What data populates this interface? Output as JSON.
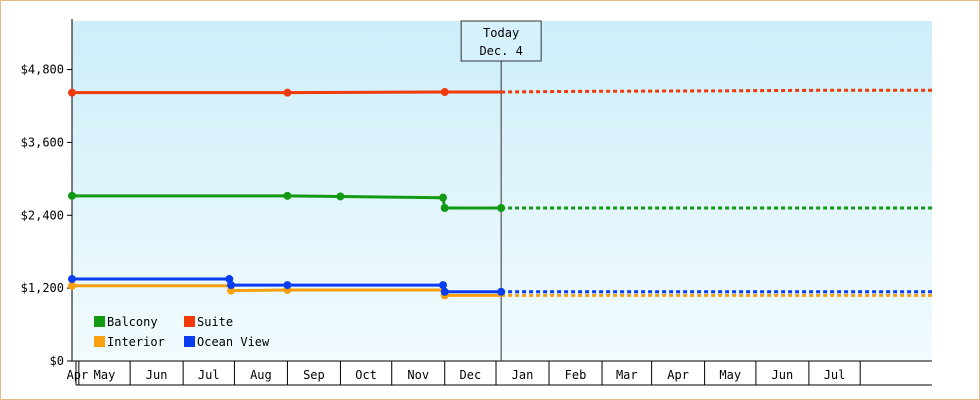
{
  "chart_data": {
    "type": "line",
    "y_ticks": [
      "$0",
      "$1,200",
      "$2,400",
      "$3,600",
      "$4,800"
    ],
    "y_tick_values": [
      0,
      1200,
      2400,
      3600,
      4800
    ],
    "ylim": [
      0,
      5600
    ],
    "x_ticks": [
      "Apr",
      "May",
      "Jun",
      "Jul",
      "Aug",
      "Sep",
      "Oct",
      "Nov",
      "Dec",
      "Jan",
      "Feb",
      "Mar",
      "Apr",
      "May",
      "Jun",
      "Jul"
    ],
    "xlim": [
      "2023-03-28",
      "2024-08-12"
    ],
    "today": {
      "label_line1": "Today",
      "label_line2": "Dec. 4",
      "date": "2023-12-04"
    },
    "grid": false,
    "legend_position": "bottom-left",
    "background_gradient": [
      "#cdeef9",
      "#f2fbfe"
    ],
    "series": [
      {
        "name": "Balcony",
        "color": "#129a12",
        "actual": [
          {
            "x": "2023-03-28",
            "y": 2720
          },
          {
            "x": "2023-08-01",
            "y": 2720
          },
          {
            "x": "2023-09-01",
            "y": 2710
          },
          {
            "x": "2023-10-31",
            "y": 2690
          },
          {
            "x": "2023-11-01",
            "y": 2520
          },
          {
            "x": "2023-12-04",
            "y": 2520
          }
        ],
        "markers": [
          "2023-03-28",
          "2023-08-01",
          "2023-09-01",
          "2023-10-31",
          "2023-11-01",
          "2023-12-04"
        ],
        "forecast": [
          {
            "x": "2023-12-04",
            "y": 2520
          },
          {
            "x": "2024-08-12",
            "y": 2520
          }
        ]
      },
      {
        "name": "Suite",
        "color": "#f03a0a",
        "actual": [
          {
            "x": "2023-03-28",
            "y": 4420
          },
          {
            "x": "2023-08-01",
            "y": 4420
          },
          {
            "x": "2023-11-01",
            "y": 4430
          },
          {
            "x": "2023-12-04",
            "y": 4430
          }
        ],
        "markers": [
          "2023-03-28",
          "2023-08-01",
          "2023-11-01"
        ],
        "forecast": [
          {
            "x": "2023-12-04",
            "y": 4430
          },
          {
            "x": "2024-01-15",
            "y": 4440
          },
          {
            "x": "2024-04-15",
            "y": 4450
          },
          {
            "x": "2024-06-15",
            "y": 4460
          },
          {
            "x": "2024-08-12",
            "y": 4460
          }
        ]
      },
      {
        "name": "Interior",
        "color": "#f8a010",
        "actual": [
          {
            "x": "2023-03-28",
            "y": 1240
          },
          {
            "x": "2023-06-28",
            "y": 1240
          },
          {
            "x": "2023-06-29",
            "y": 1160
          },
          {
            "x": "2023-08-01",
            "y": 1170
          },
          {
            "x": "2023-10-31",
            "y": 1170
          },
          {
            "x": "2023-11-01",
            "y": 1080
          },
          {
            "x": "2023-12-04",
            "y": 1080
          }
        ],
        "markers": [
          "2023-03-28",
          "2023-06-29",
          "2023-08-01",
          "2023-11-01"
        ],
        "forecast": [
          {
            "x": "2023-12-04",
            "y": 1080
          },
          {
            "x": "2024-08-12",
            "y": 1080
          }
        ]
      },
      {
        "name": "Ocean View",
        "color": "#0a3cf0",
        "actual": [
          {
            "x": "2023-03-28",
            "y": 1350
          },
          {
            "x": "2023-06-28",
            "y": 1350
          },
          {
            "x": "2023-06-29",
            "y": 1250
          },
          {
            "x": "2023-10-31",
            "y": 1250
          },
          {
            "x": "2023-11-01",
            "y": 1140
          },
          {
            "x": "2023-12-04",
            "y": 1140
          }
        ],
        "markers": [
          "2023-03-28",
          "2023-06-28",
          "2023-06-29",
          "2023-08-01",
          "2023-10-31",
          "2023-11-01",
          "2023-12-04"
        ],
        "forecast": [
          {
            "x": "2023-12-04",
            "y": 1140
          },
          {
            "x": "2024-08-12",
            "y": 1140
          }
        ]
      }
    ],
    "legend_order": [
      "Balcony",
      "Suite",
      "Interior",
      "Ocean View"
    ]
  }
}
